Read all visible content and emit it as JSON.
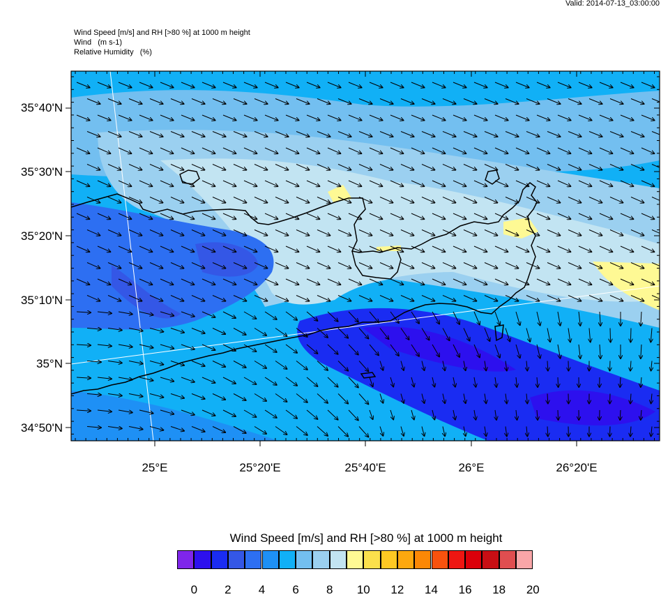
{
  "valid_label": "Valid: 2014-07-13_03:00:00",
  "header_lines": [
    "Wind Speed [m/s] and RH [>80 %] at 1000 m height",
    "Wind   (m s-1)",
    "Relative Humidity   (%)"
  ],
  "lat_labels": [
    "35°40'N",
    "35°30'N",
    "35°20'N",
    "35°10'N",
    "35°N",
    "34°50'N"
  ],
  "lon_labels": [
    "25°E",
    "25°20'E",
    "25°40'E",
    "26°E",
    "26°20'E"
  ],
  "colorbar": {
    "title": "Wind Speed [m/s] and RH [>80 %] at 1000 m height",
    "colors": [
      "#7f26ea",
      "#2d10ee",
      "#1a2cf2",
      "#3457e6",
      "#2d6ff2",
      "#1e90f5",
      "#11b0f6",
      "#73bff0",
      "#9bd0f0",
      "#c2e4f2",
      "#fef994",
      "#fbe04c",
      "#fec823",
      "#fda80f",
      "#fb8806",
      "#f8520e",
      "#ee1612",
      "#db000a",
      "#c80e14",
      "#e04e50",
      "#f9a6a8"
    ],
    "labels": [
      "0",
      "2",
      "4",
      "6",
      "8",
      "10",
      "12",
      "14",
      "16",
      "18",
      "20"
    ]
  },
  "colors": {
    "land_outline": "#000000",
    "grid": "#ffffff"
  }
}
